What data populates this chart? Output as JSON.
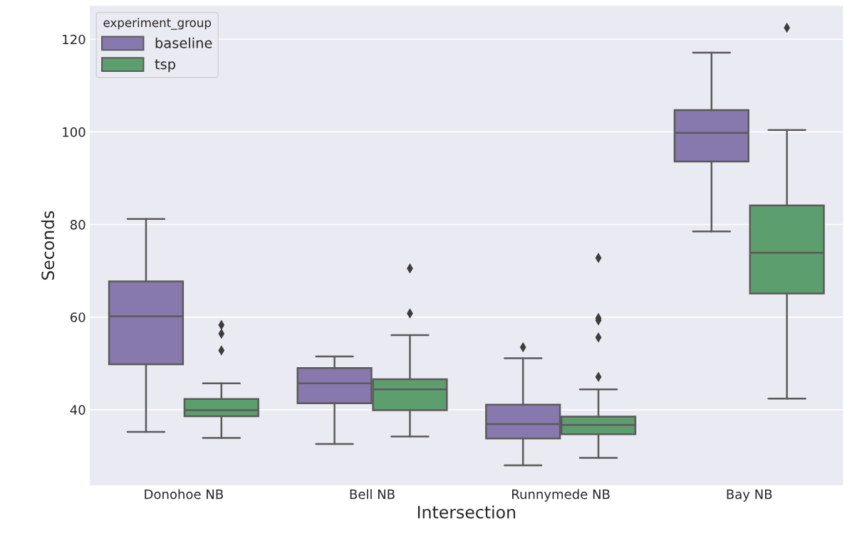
{
  "chart_data": {
    "type": "box",
    "xlabel": "Intersection",
    "ylabel": "Seconds",
    "legend_title": "experiment_group",
    "categories": [
      "Donohoe NB",
      "Bell NB",
      "Runnymede NB",
      "Bay NB"
    ],
    "ylim": [
      23.6,
      127.3
    ],
    "yticks": [
      40,
      60,
      80,
      100,
      120
    ],
    "grid": "y",
    "legend": "top left",
    "series": [
      {
        "name": "baseline",
        "color": "#8779ad",
        "boxes": [
          {
            "low": 35.2,
            "q1": 49.8,
            "median": 60.2,
            "q3": 67.7,
            "high": 81.2
          },
          {
            "low": 32.6,
            "q1": 41.4,
            "median": 45.7,
            "q3": 49.0,
            "high": 51.5
          },
          {
            "low": 28.0,
            "q1": 33.8,
            "median": 36.9,
            "q3": 41.1,
            "high": 51.1,
            "outliers": [
              53.5
            ]
          },
          {
            "low": 78.5,
            "q1": 93.6,
            "median": 99.8,
            "q3": 104.7,
            "high": 117.1
          }
        ]
      },
      {
        "name": "tsp",
        "color": "#5c9e6d",
        "boxes": [
          {
            "low": 33.9,
            "q1": 38.6,
            "median": 39.9,
            "q3": 42.3,
            "high": 45.7,
            "outliers": [
              52.8,
              56.4,
              58.3
            ]
          },
          {
            "low": 34.2,
            "q1": 39.9,
            "median": 44.4,
            "q3": 46.6,
            "high": 56.1,
            "outliers": [
              60.8,
              70.5
            ]
          },
          {
            "low": 29.6,
            "q1": 34.7,
            "median": 36.7,
            "q3": 38.5,
            "high": 44.4,
            "outliers": [
              47.1,
              55.6,
              59.3,
              59.8,
              72.8
            ]
          },
          {
            "low": 42.4,
            "q1": 65.1,
            "median": 73.9,
            "q3": 84.1,
            "high": 100.4,
            "outliers": [
              122.5
            ]
          }
        ]
      }
    ]
  }
}
